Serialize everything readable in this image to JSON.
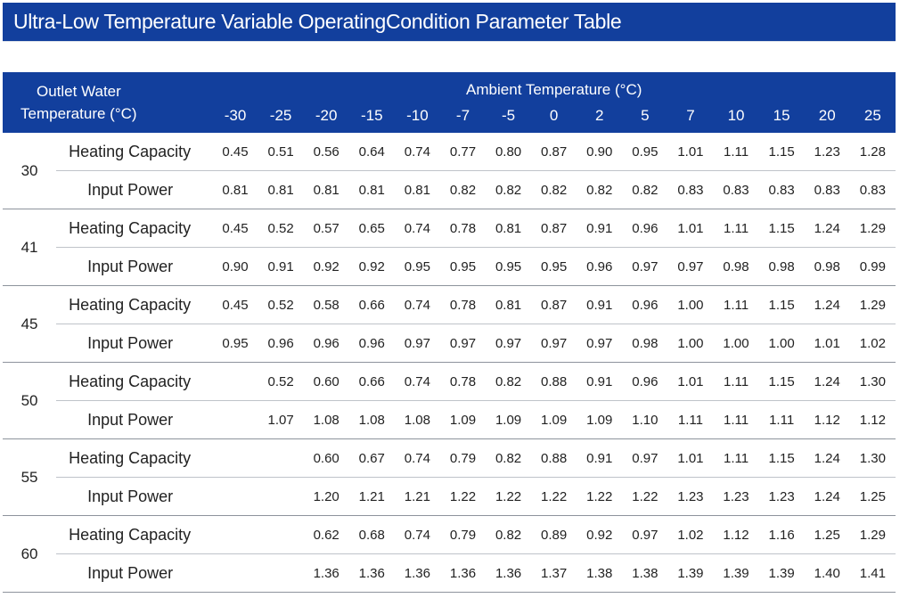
{
  "title": "Ultra-Low Temperature Variable OperatingCondition Parameter Table",
  "headers": {
    "outlet_water_line1": "Outlet Water",
    "outlet_water_line2": "Temperature (°C)",
    "ambient": "Ambient Temperature (°C)",
    "ambient_temps": [
      "-30",
      "-25",
      "-20",
      "-15",
      "-10",
      "-7",
      "-5",
      "0",
      "2",
      "5",
      "7",
      "10",
      "15",
      "20",
      "25"
    ]
  },
  "groups": [
    {
      "water_temp": "30",
      "heating_label": "Heating Capacity",
      "power_label": "Input Power",
      "heating": [
        "0.45",
        "0.51",
        "0.56",
        "0.64",
        "0.74",
        "0.77",
        "0.80",
        "0.87",
        "0.90",
        "0.95",
        "1.01",
        "1.11",
        "1.15",
        "1.23",
        "1.28"
      ],
      "power": [
        "0.81",
        "0.81",
        "0.81",
        "0.81",
        "0.81",
        "0.82",
        "0.82",
        "0.82",
        "0.82",
        "0.82",
        "0.83",
        "0.83",
        "0.83",
        "0.83",
        "0.83"
      ]
    },
    {
      "water_temp": "41",
      "heating_label": "Heating Capacity",
      "power_label": "Input Power",
      "heating": [
        "0.45",
        "0.52",
        "0.57",
        "0.65",
        "0.74",
        "0.78",
        "0.81",
        "0.87",
        "0.91",
        "0.96",
        "1.01",
        "1.11",
        "1.15",
        "1.24",
        "1.29"
      ],
      "power": [
        "0.90",
        "0.91",
        "0.92",
        "0.92",
        "0.95",
        "0.95",
        "0.95",
        "0.95",
        "0.96",
        "0.97",
        "0.97",
        "0.98",
        "0.98",
        "0.98",
        "0.99"
      ]
    },
    {
      "water_temp": "45",
      "heating_label": "Heating Capacity",
      "power_label": "Input Power",
      "heating": [
        "0.45",
        "0.52",
        "0.58",
        "0.66",
        "0.74",
        "0.78",
        "0.81",
        "0.87",
        "0.91",
        "0.96",
        "1.00",
        "1.11",
        "1.15",
        "1.24",
        "1.29"
      ],
      "power": [
        "0.95",
        "0.96",
        "0.96",
        "0.96",
        "0.97",
        "0.97",
        "0.97",
        "0.97",
        "0.97",
        "0.98",
        "1.00",
        "1.00",
        "1.00",
        "1.01",
        "1.02"
      ]
    },
    {
      "water_temp": "50",
      "heating_label": "Heating Capacity",
      "power_label": "Input Power",
      "heating": [
        "",
        "0.52",
        "0.60",
        "0.66",
        "0.74",
        "0.78",
        "0.82",
        "0.88",
        "0.91",
        "0.96",
        "1.01",
        "1.11",
        "1.15",
        "1.24",
        "1.30"
      ],
      "power": [
        "",
        "1.07",
        "1.08",
        "1.08",
        "1.08",
        "1.09",
        "1.09",
        "1.09",
        "1.09",
        "1.10",
        "1.11",
        "1.11",
        "1.11",
        "1.12",
        "1.12"
      ]
    },
    {
      "water_temp": "55",
      "heating_label": "Heating Capacity",
      "power_label": "Input Power",
      "heating": [
        "",
        "",
        "0.60",
        "0.67",
        "0.74",
        "0.79",
        "0.82",
        "0.88",
        "0.91",
        "0.97",
        "1.01",
        "1.11",
        "1.15",
        "1.24",
        "1.30"
      ],
      "power": [
        "",
        "",
        "1.20",
        "1.21",
        "1.21",
        "1.22",
        "1.22",
        "1.22",
        "1.22",
        "1.22",
        "1.23",
        "1.23",
        "1.23",
        "1.24",
        "1.25"
      ]
    },
    {
      "water_temp": "60",
      "heating_label": "Heating Capacity",
      "power_label": "Input Power",
      "heating": [
        "",
        "",
        "0.62",
        "0.68",
        "0.74",
        "0.79",
        "0.82",
        "0.89",
        "0.92",
        "0.97",
        "1.02",
        "1.12",
        "1.16",
        "1.25",
        "1.29"
      ],
      "power": [
        "",
        "",
        "1.36",
        "1.36",
        "1.36",
        "1.36",
        "1.36",
        "1.37",
        "1.38",
        "1.38",
        "1.39",
        "1.39",
        "1.39",
        "1.40",
        "1.41"
      ]
    }
  ]
}
